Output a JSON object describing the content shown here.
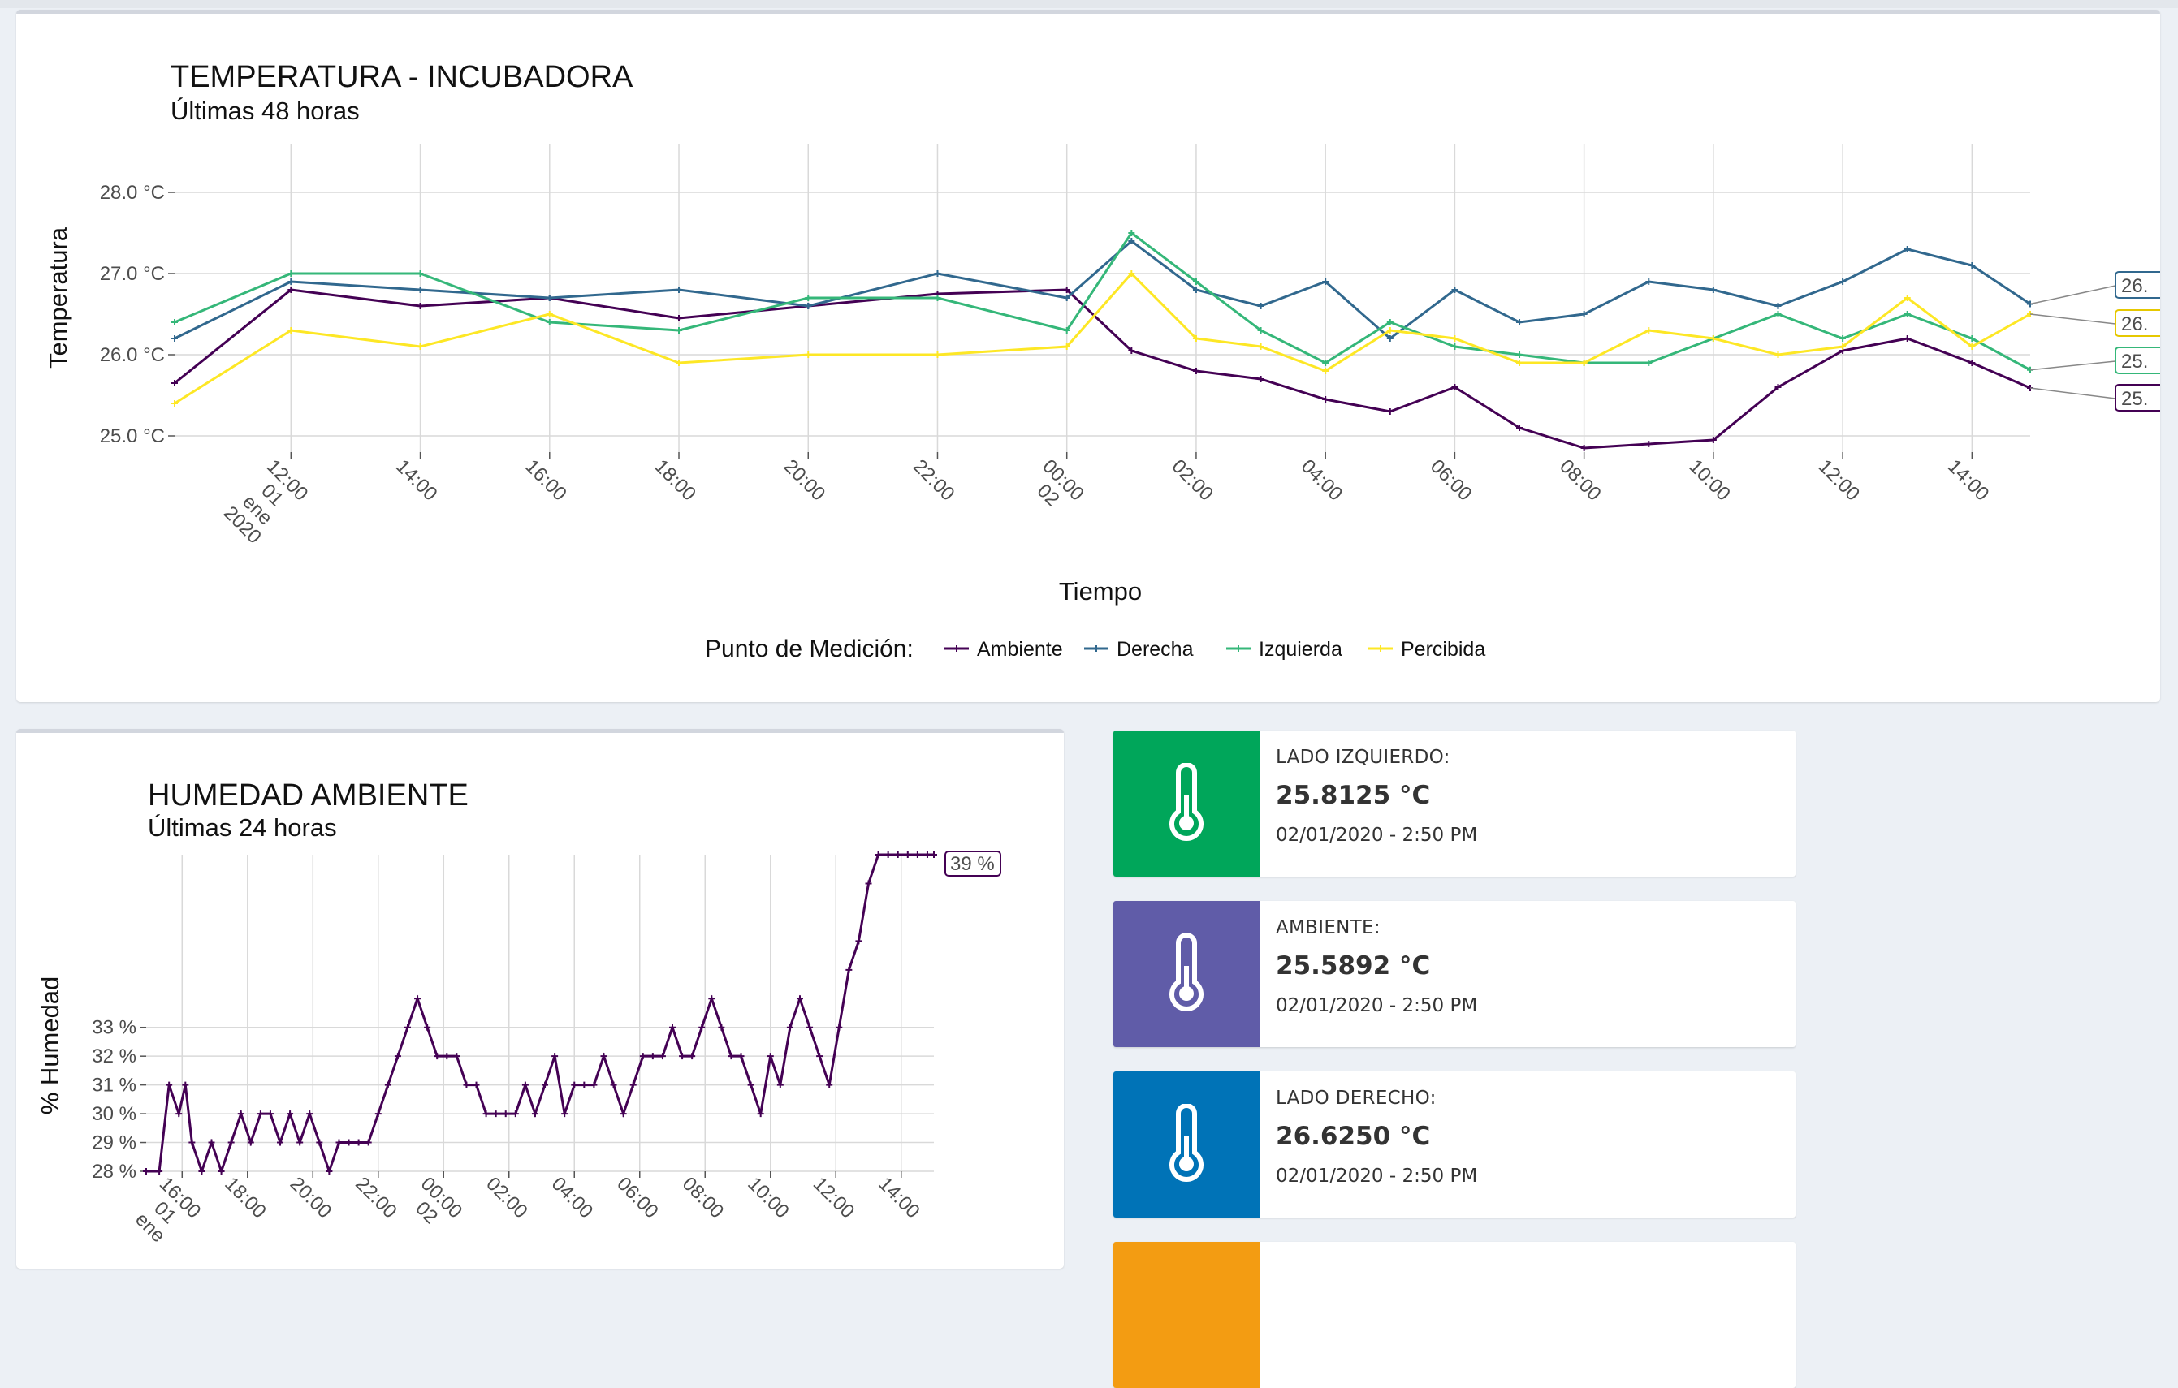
{
  "temp_chart": {
    "title": "TEMPERATURA - INCUBADORA",
    "subtitle": "Últimas 48 horas",
    "xlabel": "Tiempo",
    "ylabel": "Temperatura",
    "legend_title": "Punto de Medición:",
    "y_ticks": [
      "25.0 °C",
      "26.0 °C",
      "27.0 °C",
      "28.0 °C"
    ],
    "x_ticks": [
      "12:00\n01\nene\n2020",
      "14:00",
      "16:00",
      "18:00",
      "20:00",
      "22:00",
      "00:00\n02",
      "02:00",
      "04:00",
      "06:00",
      "08:00",
      "10:00",
      "12:00",
      "14:00"
    ],
    "end_labels": [
      "26.",
      "26.",
      "25.",
      "25."
    ]
  },
  "hum_chart": {
    "title": "HUMEDAD AMBIENTE",
    "subtitle": "Últimas 24 horas",
    "ylabel": "% Humedad",
    "y_ticks": [
      "28 %",
      "29 %",
      "30 %",
      "31 %",
      "32 %",
      "33 %"
    ],
    "x_ticks": [
      "16:00\n01\nene",
      "18:00",
      "20:00",
      "22:00",
      "00:00\n02",
      "02:00",
      "04:00",
      "06:00",
      "08:00",
      "10:00",
      "12:00",
      "14:00"
    ],
    "end_label": "39 %"
  },
  "chart_data": [
    {
      "type": "line",
      "title": "TEMPERATURA - INCUBADORA",
      "subtitle": "Últimas 48 horas",
      "xlabel": "Tiempo",
      "ylabel": "Temperatura",
      "x_unit": "hours since 2020-01-01 00:00",
      "xlim": [
        10.2,
        38.9
      ],
      "ylim": [
        24.8,
        28.6
      ],
      "legend": "bottom",
      "grid": true,
      "series": [
        {
          "name": "Ambiente",
          "color": "#440154",
          "x": [
            10.2,
            12,
            14,
            16,
            18,
            20,
            22,
            24,
            25,
            26,
            27,
            28,
            29,
            30,
            31,
            32,
            33,
            34,
            35,
            36,
            37,
            38,
            38.9
          ],
          "y": [
            25.65,
            26.8,
            26.6,
            26.7,
            26.45,
            26.6,
            26.75,
            26.8,
            26.05,
            25.8,
            25.7,
            25.45,
            25.3,
            25.6,
            25.1,
            24.85,
            24.9,
            24.95,
            25.6,
            26.05,
            26.2,
            25.9,
            25.59
          ]
        },
        {
          "name": "Derecha",
          "color": "#31688e",
          "x": [
            10.2,
            12,
            14,
            16,
            18,
            20,
            22,
            24,
            25,
            26,
            27,
            28,
            29,
            30,
            31,
            32,
            33,
            34,
            35,
            36,
            37,
            38,
            38.9
          ],
          "y": [
            26.2,
            26.9,
            26.8,
            26.7,
            26.8,
            26.6,
            27.0,
            26.7,
            27.4,
            26.8,
            26.6,
            26.9,
            26.2,
            26.8,
            26.4,
            26.5,
            26.9,
            26.8,
            26.6,
            26.9,
            27.3,
            27.1,
            26.625
          ]
        },
        {
          "name": "Izquierda",
          "color": "#35b779",
          "x": [
            10.2,
            12,
            14,
            16,
            18,
            20,
            22,
            24,
            25,
            26,
            27,
            28,
            29,
            30,
            31,
            32,
            33,
            34,
            35,
            36,
            37,
            38,
            38.9
          ],
          "y": [
            26.4,
            27.0,
            27.0,
            26.4,
            26.3,
            26.7,
            26.7,
            26.3,
            27.5,
            26.9,
            26.3,
            25.9,
            26.4,
            26.1,
            26.0,
            25.9,
            25.9,
            26.2,
            26.5,
            26.2,
            26.5,
            26.2,
            25.8125
          ]
        },
        {
          "name": "Percibida",
          "color": "#fde725",
          "x": [
            10.2,
            12,
            14,
            16,
            18,
            20,
            22,
            24,
            25,
            26,
            27,
            28,
            29,
            30,
            31,
            32,
            33,
            34,
            35,
            36,
            37,
            38,
            38.9
          ],
          "y": [
            25.4,
            26.3,
            26.1,
            26.5,
            25.9,
            26.0,
            26.0,
            26.1,
            27.0,
            26.2,
            26.1,
            25.8,
            26.3,
            26.2,
            25.9,
            25.9,
            26.3,
            26.2,
            26.0,
            26.1,
            26.7,
            26.1,
            26.5
          ]
        }
      ]
    },
    {
      "type": "line",
      "title": "HUMEDAD AMBIENTE",
      "subtitle": "Últimas 24 horas",
      "xlabel": "",
      "ylabel": "% Humedad",
      "x_unit": "hours since 2020-01-01 00:00",
      "xlim": [
        14.9,
        39.0
      ],
      "ylim": [
        28,
        39
      ],
      "grid": true,
      "series": [
        {
          "name": "",
          "color": "#440154",
          "x": [
            14.9,
            15.3,
            15.6,
            15.9,
            16.1,
            16.3,
            16.6,
            16.9,
            17.2,
            17.5,
            17.8,
            18.1,
            18.4,
            18.7,
            19.0,
            19.3,
            19.6,
            19.9,
            20.2,
            20.5,
            20.8,
            21.1,
            21.4,
            21.7,
            22.0,
            22.3,
            22.6,
            22.9,
            23.2,
            23.5,
            23.8,
            24.1,
            24.4,
            24.7,
            25.0,
            25.3,
            25.6,
            25.9,
            26.2,
            26.5,
            26.8,
            27.1,
            27.4,
            27.7,
            28.0,
            28.3,
            28.6,
            28.9,
            29.2,
            29.5,
            29.8,
            30.1,
            30.4,
            30.7,
            31.0,
            31.3,
            31.6,
            31.9,
            32.2,
            32.5,
            32.8,
            33.1,
            33.4,
            33.7,
            34.0,
            34.3,
            34.6,
            34.9,
            35.2,
            35.5,
            35.8,
            36.1,
            36.4,
            36.7,
            37.0,
            37.3,
            37.6,
            37.9,
            38.2,
            38.5,
            38.8,
            39.0
          ],
          "y": [
            28,
            28,
            31,
            30,
            31,
            29,
            28,
            29,
            28,
            29,
            30,
            29,
            30,
            30,
            29,
            30,
            29,
            30,
            29,
            28,
            29,
            29,
            29,
            29,
            30,
            31,
            32,
            33,
            34,
            33,
            32,
            32,
            32,
            31,
            31,
            30,
            30,
            30,
            30,
            31,
            30,
            31,
            32,
            30,
            31,
            31,
            31,
            32,
            31,
            30,
            31,
            32,
            32,
            32,
            33,
            32,
            32,
            33,
            34,
            33,
            32,
            32,
            31,
            30,
            32,
            31,
            33,
            34,
            33,
            32,
            31,
            33,
            35,
            36,
            38,
            39,
            39,
            39,
            39,
            39,
            39,
            39
          ]
        }
      ]
    }
  ],
  "info_boxes": [
    {
      "label": "LADO IZQUIERDO:",
      "value": "25.8125 °C",
      "time": "02/01/2020 - 2:50 PM",
      "color": "#00a65a",
      "icon": "thermometer-icon"
    },
    {
      "label": "AMBIENTE:",
      "value": "25.5892 °C",
      "time": "02/01/2020 - 2:50 PM",
      "color": "#605ca8",
      "icon": "thermometer-icon"
    },
    {
      "label": "LADO DERECHO:",
      "value": "26.6250 °C",
      "time": "02/01/2020 - 2:50 PM",
      "color": "#0073b7",
      "icon": "thermometer-icon"
    },
    {
      "color": "#f39c12"
    }
  ]
}
